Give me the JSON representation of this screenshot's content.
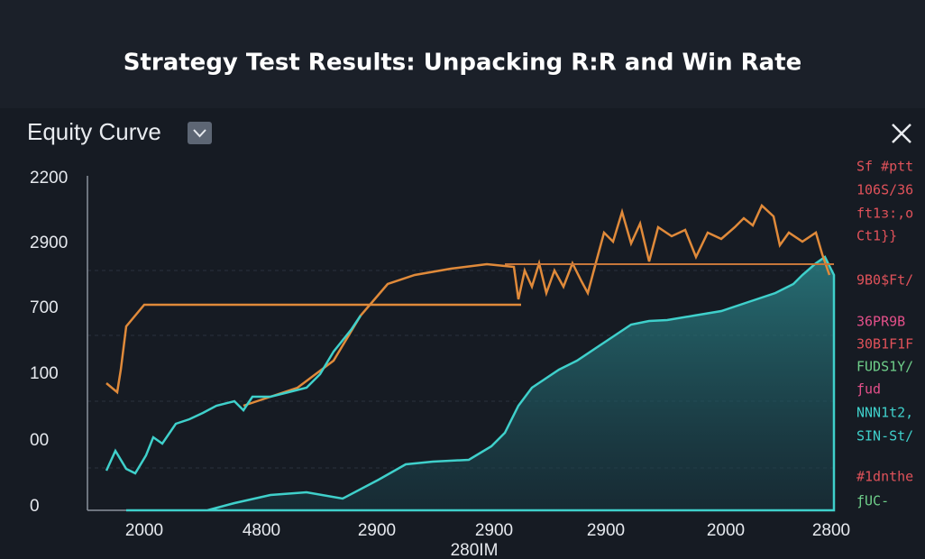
{
  "header": {
    "title": "Strategy Test Results: Unpacking R:R and Win Rate"
  },
  "panel": {
    "title": "Equity Curve",
    "y_labels": [
      "2200",
      "2900",
      "700",
      "100",
      "00",
      "0"
    ],
    "x_labels": [
      "2000",
      "4800",
      "2900",
      "2900",
      "2900",
      "2000",
      "2800"
    ],
    "x_caption": "280IM",
    "side_texts": [
      "Sf #ptt",
      "106S/36",
      "ft1з:,o",
      "Ct1}}",
      "9B0$Ft/",
      "36PR9B",
      "30B1F1F",
      "FUDS1Y/",
      "ƒud",
      "NNN1t2,",
      "SIN-St/",
      "#1dnthe",
      "ƒUC-"
    ]
  }
}
